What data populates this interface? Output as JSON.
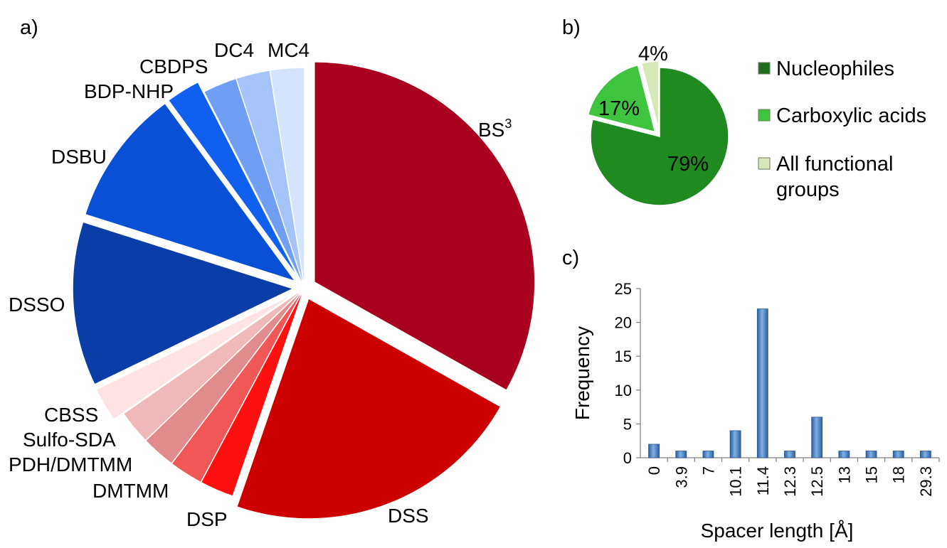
{
  "panels": {
    "a": "a)",
    "b": "b)",
    "c": "c)"
  },
  "chart_data": [
    {
      "type": "pie",
      "panel": "a",
      "slices": [
        {
          "label": "BS",
          "sup": "3",
          "value": 33,
          "color": "#a8001e",
          "exploded": true
        },
        {
          "label": "DSS",
          "value": 22,
          "color": "#cc0000",
          "exploded": true
        },
        {
          "label": "DSP",
          "value": 2.5,
          "color": "#ff1010"
        },
        {
          "label": "DMTMM",
          "value": 2.5,
          "color": "#f05858"
        },
        {
          "label": "PDH/DMTMM",
          "value": 2.5,
          "color": "#e08c8c"
        },
        {
          "label": "Sulfo-SDA",
          "value": 2.5,
          "color": "#f0b8b8"
        },
        {
          "label": "CBSS",
          "value": 2.5,
          "color": "#fde3e3",
          "exploded": true
        },
        {
          "label": "DSSO",
          "value": 12,
          "color": "#0a3ea6",
          "exploded": true
        },
        {
          "label": "DSBU",
          "value": 10,
          "color": "#0a50d6",
          "exploded": true
        },
        {
          "label": "BDP-NHP",
          "value": 2.5,
          "color": "#1060f0",
          "exploded": true
        },
        {
          "label": "CBDPS",
          "value": 2.5,
          "color": "#6f9ef5"
        },
        {
          "label": "DC4",
          "value": 2.5,
          "color": "#a6c4fa"
        },
        {
          "label": "MC4",
          "value": 2.5,
          "color": "#d5e4fd"
        }
      ]
    },
    {
      "type": "pie",
      "panel": "b",
      "slices": [
        {
          "label": "Nucleophiles",
          "percent_label": "79%",
          "value": 79,
          "color": "#1f8a1f"
        },
        {
          "label": "Carboxylic acids",
          "percent_label": "17%",
          "value": 17,
          "color": "#3ec43e",
          "exploded": true
        },
        {
          "label": "All functional groups",
          "percent_label": "4%",
          "value": 4,
          "color": "#d6e8b8",
          "exploded": true
        }
      ],
      "legend": {
        "placement": "right",
        "entries": [
          {
            "lines": [
              "Nucleophiles"
            ],
            "color": "#1f6e1f"
          },
          {
            "lines": [
              "Carboxylic acids"
            ],
            "color": "#3ec43e"
          },
          {
            "lines": [
              "All functional",
              "groups"
            ],
            "color": "#d8e8bc"
          }
        ]
      }
    },
    {
      "type": "bar",
      "panel": "c",
      "categories": [
        "0",
        "3.9",
        "7",
        "10.1",
        "11.4",
        "12.3",
        "12.5",
        "13",
        "15",
        "18",
        "29.3"
      ],
      "values": [
        2,
        1,
        1,
        4,
        22,
        1,
        6,
        1,
        1,
        1,
        1
      ],
      "xlabel": "Spacer length [Å]",
      "ylabel": "Frequency",
      "ylim": [
        0,
        25
      ],
      "yticks": [
        "0",
        "5",
        "10",
        "15",
        "20",
        "25"
      ],
      "bar_color": "#4f86c6",
      "grid": false
    }
  ]
}
